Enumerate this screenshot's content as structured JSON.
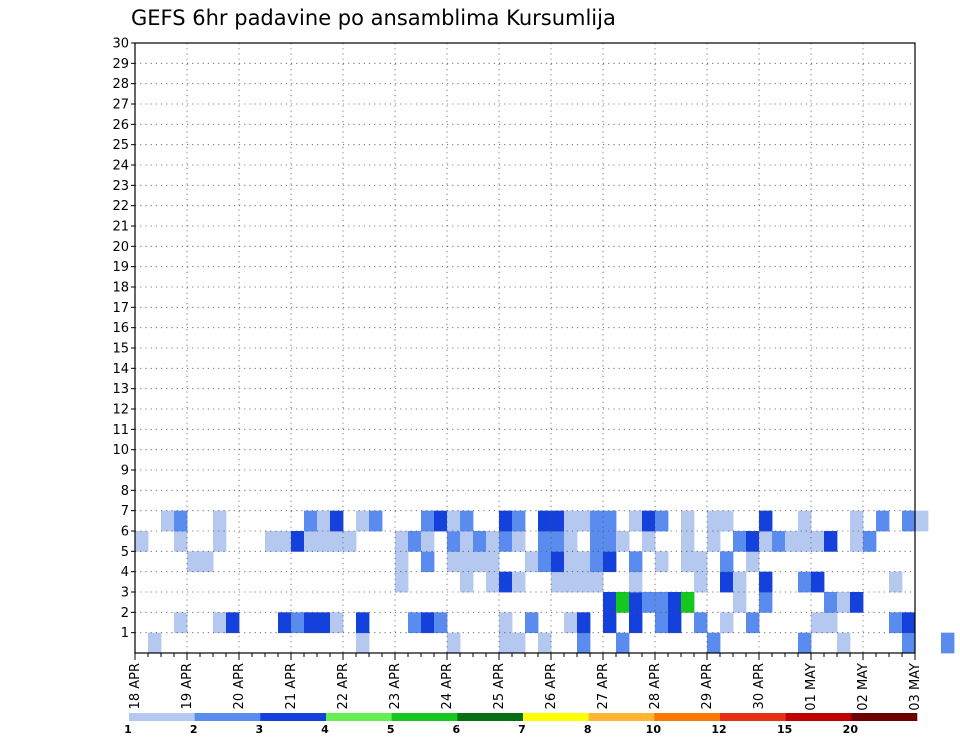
{
  "chart_data": {
    "type": "heatmap",
    "title": "GEFS 6hr padavine po ansamblima Kursumlija",
    "y_categories": [
      "1",
      "2",
      "3",
      "4",
      "5",
      "6",
      "7",
      "8",
      "9",
      "10",
      "11",
      "12",
      "13",
      "14",
      "15",
      "16",
      "17",
      "18",
      "19",
      "20",
      "21",
      "22",
      "23",
      "24",
      "25",
      "26",
      "27",
      "28",
      "29",
      "30"
    ],
    "x_tick_labels": [
      "18 APR",
      "19 APR",
      "20 APR",
      "21 APR",
      "22 APR",
      "23 APR",
      "24 APR",
      "25 APR",
      "26 APR",
      "27 APR",
      "28 APR",
      "29 APR",
      "30 APR",
      "01 MAY",
      "02 MAY",
      "03 MAY"
    ],
    "x_steps": 60,
    "steps_per_day": 4,
    "y_min": 0,
    "y_max": 30,
    "grid": true,
    "colorbar": {
      "labels": [
        "1",
        "2",
        "3",
        "4",
        "5",
        "6",
        "7",
        "8",
        "10",
        "12",
        "15",
        "20"
      ],
      "colors": [
        "#b4c8f0",
        "#5a8cf0",
        "#1440dc",
        "#64f050",
        "#14c81e",
        "#0a6e14",
        "#ffff00",
        "#ffb432",
        "#ff7800",
        "#e63214",
        "#be0000",
        "#6e0000"
      ]
    },
    "cells": [
      [
        1,
        0,
        1
      ],
      [
        17,
        0,
        1
      ],
      [
        24,
        0,
        1
      ],
      [
        28,
        0,
        1
      ],
      [
        29,
        0,
        1
      ],
      [
        31,
        0,
        1
      ],
      [
        34,
        0,
        2
      ],
      [
        37,
        0,
        2
      ],
      [
        44,
        0,
        2
      ],
      [
        51,
        0,
        2
      ],
      [
        54,
        0,
        1
      ],
      [
        59,
        0,
        2
      ],
      [
        62,
        0,
        2
      ],
      [
        3,
        1,
        1
      ],
      [
        6,
        1,
        1
      ],
      [
        7,
        1,
        3
      ],
      [
        11,
        1,
        3
      ],
      [
        12,
        1,
        2
      ],
      [
        13,
        1,
        3
      ],
      [
        14,
        1,
        3
      ],
      [
        15,
        1,
        1
      ],
      [
        17,
        1,
        3
      ],
      [
        21,
        1,
        2
      ],
      [
        22,
        1,
        3
      ],
      [
        23,
        1,
        2
      ],
      [
        28,
        1,
        1
      ],
      [
        30,
        1,
        2
      ],
      [
        33,
        1,
        1
      ],
      [
        34,
        1,
        3
      ],
      [
        36,
        1,
        3
      ],
      [
        38,
        1,
        3
      ],
      [
        40,
        1,
        2
      ],
      [
        41,
        1,
        3
      ],
      [
        43,
        1,
        2
      ],
      [
        45,
        1,
        1
      ],
      [
        47,
        1,
        2
      ],
      [
        52,
        1,
        1
      ],
      [
        53,
        1,
        1
      ],
      [
        58,
        1,
        2
      ],
      [
        59,
        1,
        3
      ],
      [
        36,
        2,
        3
      ],
      [
        37,
        2,
        5
      ],
      [
        38,
        2,
        3
      ],
      [
        39,
        2,
        2
      ],
      [
        40,
        2,
        2
      ],
      [
        41,
        2,
        3
      ],
      [
        42,
        2,
        5
      ],
      [
        46,
        2,
        1
      ],
      [
        48,
        2,
        2
      ],
      [
        53,
        2,
        2
      ],
      [
        54,
        2,
        1
      ],
      [
        55,
        2,
        3
      ],
      [
        20,
        3,
        1
      ],
      [
        25,
        3,
        1
      ],
      [
        27,
        3,
        1
      ],
      [
        28,
        3,
        3
      ],
      [
        29,
        3,
        1
      ],
      [
        32,
        3,
        1
      ],
      [
        33,
        3,
        1
      ],
      [
        34,
        3,
        1
      ],
      [
        35,
        3,
        1
      ],
      [
        38,
        3,
        1
      ],
      [
        43,
        3,
        1
      ],
      [
        45,
        3,
        3
      ],
      [
        46,
        3,
        1
      ],
      [
        48,
        3,
        3
      ],
      [
        51,
        3,
        2
      ],
      [
        52,
        3,
        3
      ],
      [
        58,
        3,
        1
      ],
      [
        4,
        4,
        1
      ],
      [
        5,
        4,
        1
      ],
      [
        20,
        4,
        1
      ],
      [
        22,
        4,
        2
      ],
      [
        24,
        4,
        1
      ],
      [
        25,
        4,
        1
      ],
      [
        26,
        4,
        1
      ],
      [
        27,
        4,
        1
      ],
      [
        30,
        4,
        1
      ],
      [
        31,
        4,
        2
      ],
      [
        32,
        4,
        3
      ],
      [
        33,
        4,
        1
      ],
      [
        34,
        4,
        1
      ],
      [
        35,
        4,
        2
      ],
      [
        36,
        4,
        3
      ],
      [
        38,
        4,
        2
      ],
      [
        40,
        4,
        1
      ],
      [
        42,
        4,
        1
      ],
      [
        43,
        4,
        1
      ],
      [
        45,
        4,
        2
      ],
      [
        47,
        4,
        1
      ],
      [
        0,
        5,
        1
      ],
      [
        3,
        5,
        1
      ],
      [
        6,
        5,
        1
      ],
      [
        10,
        5,
        1
      ],
      [
        11,
        5,
        1
      ],
      [
        12,
        5,
        3
      ],
      [
        13,
        5,
        1
      ],
      [
        14,
        5,
        1
      ],
      [
        15,
        5,
        1
      ],
      [
        16,
        5,
        1
      ],
      [
        20,
        5,
        1
      ],
      [
        21,
        5,
        2
      ],
      [
        22,
        5,
        1
      ],
      [
        24,
        5,
        2
      ],
      [
        25,
        5,
        1
      ],
      [
        26,
        5,
        2
      ],
      [
        27,
        5,
        1
      ],
      [
        28,
        5,
        2
      ],
      [
        29,
        5,
        1
      ],
      [
        31,
        5,
        2
      ],
      [
        32,
        5,
        2
      ],
      [
        33,
        5,
        1
      ],
      [
        35,
        5,
        2
      ],
      [
        36,
        5,
        2
      ],
      [
        37,
        5,
        1
      ],
      [
        39,
        5,
        1
      ],
      [
        42,
        5,
        1
      ],
      [
        44,
        5,
        1
      ],
      [
        46,
        5,
        2
      ],
      [
        47,
        5,
        3
      ],
      [
        48,
        5,
        1
      ],
      [
        49,
        5,
        2
      ],
      [
        50,
        5,
        1
      ],
      [
        51,
        5,
        1
      ],
      [
        52,
        5,
        1
      ],
      [
        53,
        5,
        3
      ],
      [
        55,
        5,
        1
      ],
      [
        56,
        5,
        2
      ],
      [
        2,
        6,
        1
      ],
      [
        3,
        6,
        2
      ],
      [
        6,
        6,
        1
      ],
      [
        13,
        6,
        2
      ],
      [
        14,
        6,
        1
      ],
      [
        15,
        6,
        3
      ],
      [
        17,
        6,
        1
      ],
      [
        18,
        6,
        2
      ],
      [
        22,
        6,
        2
      ],
      [
        23,
        6,
        3
      ],
      [
        24,
        6,
        1
      ],
      [
        25,
        6,
        2
      ],
      [
        28,
        6,
        3
      ],
      [
        29,
        6,
        2
      ],
      [
        31,
        6,
        3
      ],
      [
        32,
        6,
        3
      ],
      [
        33,
        6,
        1
      ],
      [
        34,
        6,
        1
      ],
      [
        35,
        6,
        2
      ],
      [
        36,
        6,
        2
      ],
      [
        38,
        6,
        1
      ],
      [
        39,
        6,
        3
      ],
      [
        40,
        6,
        2
      ],
      [
        42,
        6,
        1
      ],
      [
        44,
        6,
        1
      ],
      [
        45,
        6,
        1
      ],
      [
        48,
        6,
        3
      ],
      [
        51,
        6,
        1
      ],
      [
        55,
        6,
        1
      ],
      [
        57,
        6,
        2
      ],
      [
        59,
        6,
        2
      ],
      [
        60,
        6,
        1
      ]
    ]
  }
}
